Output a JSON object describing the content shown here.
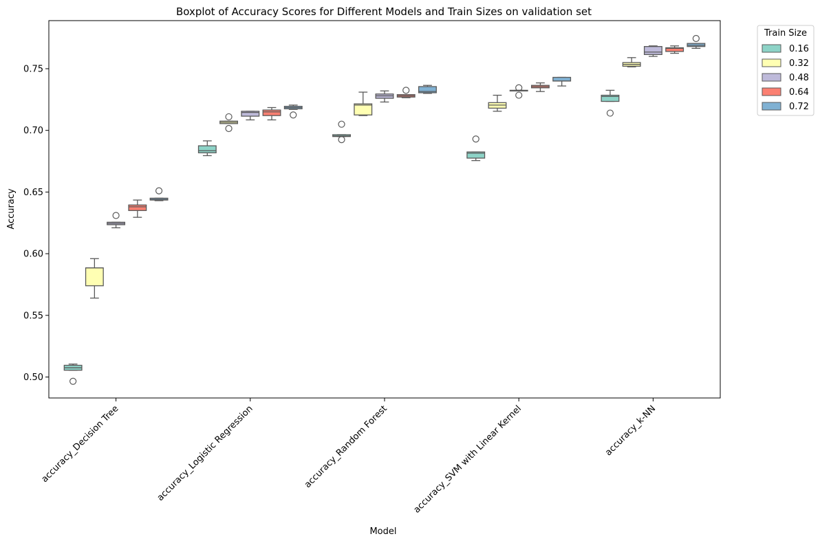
{
  "chart_data": {
    "type": "boxplot",
    "title": "Boxplot of Accuracy Scores for Different Models and Train Sizes on validation set",
    "xlabel": "Model",
    "ylabel": "Accuracy",
    "ylim": [
      0.483,
      0.789
    ],
    "yticks": [
      0.5,
      0.55,
      0.6,
      0.65,
      0.7,
      0.75
    ],
    "ytick_labels": [
      "0.50",
      "0.55",
      "0.60",
      "0.65",
      "0.70",
      "0.75"
    ],
    "categories": [
      "accuracy_Decision Tree",
      "accuracy_Logistic Regression",
      "accuracy_Random Forest",
      "accuracy_SVM with Linear Kernel",
      "accuracy_k-NN"
    ],
    "legend": {
      "title": "Train Size",
      "placement": "outside-top-right"
    },
    "series": [
      {
        "name": "0.16",
        "color": "#8dd3c7",
        "boxes": [
          {
            "whislo": 0.5055,
            "q1": 0.5055,
            "med": 0.5075,
            "q3": 0.5095,
            "whishi": 0.5105,
            "fliers": [
              0.4965
            ]
          },
          {
            "whislo": 0.6795,
            "q1": 0.6818,
            "med": 0.6835,
            "q3": 0.6875,
            "whishi": 0.6915,
            "fliers": []
          },
          {
            "whislo": 0.695,
            "q1": 0.695,
            "med": 0.6955,
            "q3": 0.6965,
            "whishi": 0.6965,
            "fliers": [
              0.705,
              0.6925
            ]
          },
          {
            "whislo": 0.6755,
            "q1": 0.6775,
            "med": 0.6815,
            "q3": 0.6825,
            "whishi": 0.6825,
            "fliers": [
              0.693
            ]
          },
          {
            "whislo": 0.7235,
            "q1": 0.7235,
            "med": 0.7275,
            "q3": 0.7285,
            "whishi": 0.7325,
            "fliers": [
              0.714
            ]
          }
        ]
      },
      {
        "name": "0.32",
        "color": "#ffffb3",
        "boxes": [
          {
            "whislo": 0.564,
            "q1": 0.574,
            "med": 0.5885,
            "q3": 0.5885,
            "whishi": 0.596,
            "fliers": []
          },
          {
            "whislo": 0.7055,
            "q1": 0.7055,
            "med": 0.7065,
            "q3": 0.7075,
            "whishi": 0.7075,
            "fliers": [
              0.711,
              0.7015
            ]
          },
          {
            "whislo": 0.712,
            "q1": 0.7125,
            "med": 0.7205,
            "q3": 0.7215,
            "whishi": 0.731,
            "fliers": []
          },
          {
            "whislo": 0.7155,
            "q1": 0.718,
            "med": 0.7205,
            "q3": 0.7225,
            "whishi": 0.7285,
            "fliers": []
          },
          {
            "whislo": 0.7515,
            "q1": 0.752,
            "med": 0.7535,
            "q3": 0.755,
            "whishi": 0.759,
            "fliers": []
          }
        ]
      },
      {
        "name": "0.48",
        "color": "#bebada",
        "boxes": [
          {
            "whislo": 0.621,
            "q1": 0.6235,
            "med": 0.6245,
            "q3": 0.6255,
            "whishi": 0.6255,
            "fliers": [
              0.631
            ]
          },
          {
            "whislo": 0.7085,
            "q1": 0.7115,
            "med": 0.7145,
            "q3": 0.7155,
            "whishi": 0.7155,
            "fliers": []
          },
          {
            "whislo": 0.723,
            "q1": 0.726,
            "med": 0.728,
            "q3": 0.7295,
            "whishi": 0.732,
            "fliers": []
          },
          {
            "whislo": 0.732,
            "q1": 0.732,
            "med": 0.732,
            "q3": 0.7325,
            "whishi": 0.7325,
            "fliers": [
              0.7345,
              0.7285
            ]
          },
          {
            "whislo": 0.76,
            "q1": 0.7615,
            "med": 0.7635,
            "q3": 0.768,
            "whishi": 0.7685,
            "fliers": []
          }
        ]
      },
      {
        "name": "0.64",
        "color": "#fb8072",
        "boxes": [
          {
            "whislo": 0.6295,
            "q1": 0.635,
            "med": 0.638,
            "q3": 0.6395,
            "whishi": 0.6435,
            "fliers": []
          },
          {
            "whislo": 0.7085,
            "q1": 0.712,
            "med": 0.715,
            "q3": 0.7165,
            "whishi": 0.7185,
            "fliers": []
          },
          {
            "whislo": 0.7265,
            "q1": 0.727,
            "med": 0.728,
            "q3": 0.729,
            "whishi": 0.729,
            "fliers": [
              0.7325
            ]
          },
          {
            "whislo": 0.7315,
            "q1": 0.7345,
            "med": 0.7355,
            "q3": 0.7365,
            "whishi": 0.7385,
            "fliers": []
          },
          {
            "whislo": 0.7625,
            "q1": 0.764,
            "med": 0.7665,
            "q3": 0.767,
            "whishi": 0.7685,
            "fliers": []
          }
        ]
      },
      {
        "name": "0.72",
        "color": "#80b1d3",
        "boxes": [
          {
            "whislo": 0.643,
            "q1": 0.6435,
            "med": 0.644,
            "q3": 0.645,
            "whishi": 0.645,
            "fliers": [
              0.651
            ]
          },
          {
            "whislo": 0.717,
            "q1": 0.7175,
            "med": 0.7185,
            "q3": 0.7195,
            "whishi": 0.7205,
            "fliers": [
              0.7125
            ]
          },
          {
            "whislo": 0.73,
            "q1": 0.7305,
            "med": 0.7315,
            "q3": 0.7355,
            "whishi": 0.7365,
            "fliers": []
          },
          {
            "whislo": 0.736,
            "q1": 0.74,
            "med": 0.74,
            "q3": 0.743,
            "whishi": 0.743,
            "fliers": []
          },
          {
            "whislo": 0.7665,
            "q1": 0.768,
            "med": 0.769,
            "q3": 0.7705,
            "whishi": 0.7705,
            "fliers": [
              0.7745
            ]
          }
        ]
      }
    ]
  }
}
